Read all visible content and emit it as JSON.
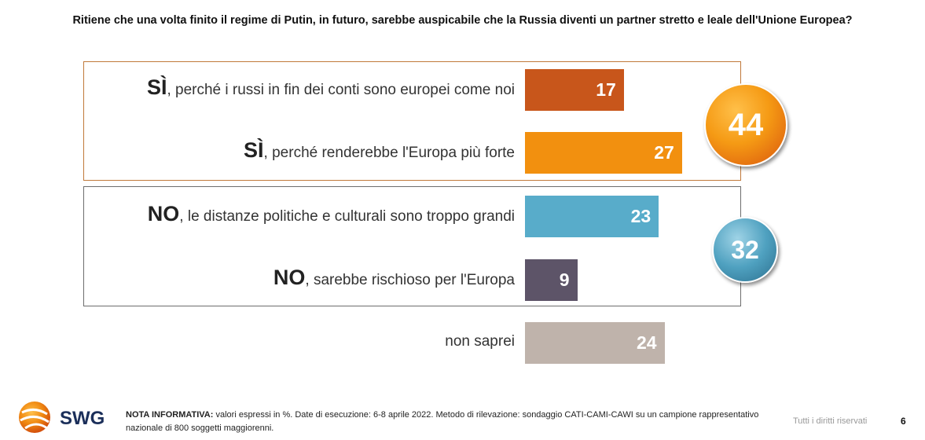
{
  "question": "Ritiene che una volta finito il regime di Putin, in futuro, sarebbe auspicabile che la Russia diventi un partner stretto e leale dell'Unione Europea?",
  "chart_data": {
    "type": "bar",
    "orientation": "horizontal",
    "title": "Ritiene che una volta finito il regime di Putin, in futuro, sarebbe auspicabile che la Russia diventi un partner stretto e leale dell'Unione Europea?",
    "unit": "%",
    "xlim": [
      0,
      40
    ],
    "grid": false,
    "categories": [
      {
        "lead": "SÌ",
        "rest": ", perché i russi in fin dei conti sono europei come noi"
      },
      {
        "lead": "SÌ",
        "rest": ", perché renderebbe l'Europa più forte"
      },
      {
        "lead": "NO",
        "rest": ", le distanze politiche e culturali sono troppo grandi"
      },
      {
        "lead": "NO",
        "rest": ", sarebbe rischioso per l'Europa"
      },
      {
        "lead": "",
        "rest": "non saprei"
      }
    ],
    "values": [
      17,
      27,
      23,
      9,
      24
    ],
    "colors": [
      "#c8561b",
      "#f2900f",
      "#58acca",
      "#5d5468",
      "#bfb3ab"
    ],
    "group_totals": [
      {
        "value": "44",
        "color": "#f59a14"
      },
      {
        "value": "32",
        "color": "#4fa1c0"
      }
    ]
  },
  "footer": {
    "logo": "SWG",
    "note_label": "NOTA INFORMATIVA:",
    "note_text": " valori espressi in %. Date di esecuzione: 6-8 aprile 2022. Metodo di rilevazione: sondaggio CATI-CAMI-CAWI su un campione rappresentativo nazionale di 800 soggetti maggiorenni.",
    "rights": "Tutti i diritti riservati",
    "page": "6"
  }
}
